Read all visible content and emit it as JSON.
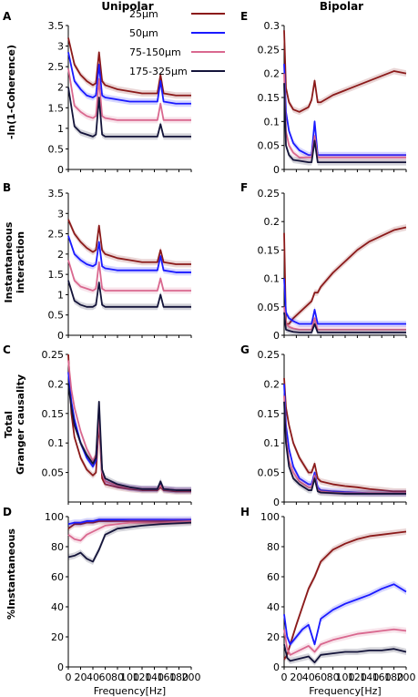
{
  "colors": {
    "s25": "#8b1a1a",
    "s50": "#1a1aff",
    "s75": "#d9688f",
    "s175": "#14143a",
    "band": "#c9c6dc"
  },
  "headers": {
    "left": "Unipolar",
    "right": "Bipolar"
  },
  "row_labels": {
    "a": [
      "-ln(1-Coherence)"
    ],
    "b": [
      "Instantaneous",
      "interaction"
    ],
    "c": [
      "Total",
      "Granger causality"
    ],
    "d": [
      "%Instantaneous"
    ]
  },
  "legend": {
    "placement": "top-right of panel A",
    "entries": [
      "25μm",
      "50μm",
      "75-150μm",
      "175-325μm"
    ]
  },
  "chart_data": [
    {
      "panel": "A",
      "type": "line",
      "ylim": [
        0,
        3.5
      ],
      "yticks": [
        "0",
        "0.5",
        "1",
        "1.5",
        "2",
        "2.5",
        "3",
        "3.5"
      ],
      "xticks": [],
      "x": [
        0,
        10,
        20,
        30,
        40,
        45,
        50,
        55,
        60,
        80,
        100,
        120,
        145,
        150,
        155,
        175,
        200
      ],
      "series": [
        {
          "name": "25μm",
          "values": [
            3.2,
            2.55,
            2.3,
            2.15,
            2.05,
            2.1,
            2.85,
            2.15,
            2.05,
            1.95,
            1.9,
            1.85,
            1.85,
            2.3,
            1.85,
            1.8,
            1.8
          ]
        },
        {
          "name": "50μm",
          "values": [
            2.85,
            2.15,
            1.95,
            1.8,
            1.75,
            1.8,
            2.55,
            1.8,
            1.75,
            1.7,
            1.65,
            1.65,
            1.65,
            2.15,
            1.65,
            1.6,
            1.6
          ]
        },
        {
          "name": "75-150μm",
          "values": [
            2.45,
            1.55,
            1.4,
            1.3,
            1.25,
            1.3,
            2.2,
            1.3,
            1.25,
            1.2,
            1.2,
            1.2,
            1.2,
            1.6,
            1.2,
            1.2,
            1.2
          ]
        },
        {
          "name": "175-325μm",
          "values": [
            2.0,
            1.05,
            0.9,
            0.85,
            0.8,
            0.85,
            1.75,
            0.85,
            0.8,
            0.8,
            0.8,
            0.8,
            0.8,
            1.1,
            0.8,
            0.8,
            0.8
          ]
        }
      ]
    },
    {
      "panel": "B",
      "type": "line",
      "ylim": [
        0,
        3.5
      ],
      "yticks": [
        "0",
        "0.5",
        "1",
        "1.5",
        "2",
        "2.5",
        "3",
        "3.5"
      ],
      "xticks": [],
      "x": [
        0,
        10,
        20,
        30,
        40,
        45,
        50,
        55,
        60,
        80,
        100,
        120,
        145,
        150,
        155,
        175,
        200
      ],
      "series": [
        {
          "name": "25μm",
          "values": [
            2.85,
            2.5,
            2.3,
            2.15,
            2.05,
            2.1,
            2.7,
            2.1,
            2.0,
            1.9,
            1.85,
            1.8,
            1.8,
            2.1,
            1.8,
            1.75,
            1.75
          ]
        },
        {
          "name": "50μm",
          "values": [
            2.45,
            2.0,
            1.85,
            1.75,
            1.7,
            1.75,
            2.3,
            1.7,
            1.65,
            1.6,
            1.6,
            1.6,
            1.6,
            1.95,
            1.6,
            1.55,
            1.55
          ]
        },
        {
          "name": "75-150μm",
          "values": [
            1.85,
            1.35,
            1.2,
            1.15,
            1.1,
            1.15,
            1.8,
            1.15,
            1.1,
            1.1,
            1.1,
            1.1,
            1.1,
            1.4,
            1.1,
            1.1,
            1.1
          ]
        },
        {
          "name": "175-325μm",
          "values": [
            1.35,
            0.85,
            0.75,
            0.7,
            0.7,
            0.75,
            1.3,
            0.75,
            0.7,
            0.7,
            0.7,
            0.7,
            0.7,
            1.0,
            0.7,
            0.7,
            0.7
          ]
        }
      ]
    },
    {
      "panel": "C",
      "type": "line",
      "ylim": [
        0,
        0.25
      ],
      "yticks": [
        "0.05",
        "0.1",
        "0.15",
        "0.2",
        "0.25"
      ],
      "xticks": [],
      "x": [
        0,
        5,
        10,
        20,
        30,
        40,
        45,
        50,
        55,
        60,
        80,
        100,
        120,
        145,
        150,
        155,
        175,
        200
      ],
      "series": [
        {
          "name": "25μm",
          "values": [
            0.25,
            0.15,
            0.11,
            0.075,
            0.055,
            0.045,
            0.05,
            0.135,
            0.04,
            0.03,
            0.025,
            0.022,
            0.02,
            0.02,
            0.025,
            0.02,
            0.018,
            0.018
          ]
        },
        {
          "name": "50μm",
          "values": [
            0.22,
            0.17,
            0.14,
            0.1,
            0.075,
            0.06,
            0.07,
            0.15,
            0.05,
            0.035,
            0.028,
            0.024,
            0.022,
            0.022,
            0.03,
            0.022,
            0.02,
            0.02
          ]
        },
        {
          "name": "75-150μm",
          "values": [
            0.24,
            0.19,
            0.16,
            0.12,
            0.09,
            0.07,
            0.08,
            0.14,
            0.05,
            0.035,
            0.028,
            0.024,
            0.022,
            0.022,
            0.028,
            0.022,
            0.02,
            0.02
          ]
        },
        {
          "name": "175-325μm",
          "values": [
            0.2,
            0.16,
            0.13,
            0.1,
            0.08,
            0.065,
            0.075,
            0.17,
            0.055,
            0.04,
            0.03,
            0.025,
            0.022,
            0.022,
            0.035,
            0.022,
            0.02,
            0.02
          ]
        }
      ]
    },
    {
      "panel": "D",
      "type": "line",
      "ylim": [
        0,
        100
      ],
      "yticks": [
        "0",
        "20",
        "40",
        "60",
        "80",
        "100"
      ],
      "xticks": [
        "0",
        "20",
        "40",
        "60",
        "80",
        "100",
        "120",
        "140",
        "160",
        "180",
        "200"
      ],
      "xlabel": "Frequency[Hz]",
      "x": [
        0,
        10,
        20,
        30,
        40,
        50,
        60,
        80,
        100,
        120,
        150,
        200
      ],
      "series": [
        {
          "name": "25μm",
          "values": [
            92,
            95,
            95,
            96,
            96,
            97,
            97,
            97,
            97,
            97,
            97,
            97
          ]
        },
        {
          "name": "50μm",
          "values": [
            95,
            96,
            96,
            97,
            97,
            98,
            98,
            98,
            98,
            98,
            98,
            98
          ]
        },
        {
          "name": "75-150μm",
          "values": [
            88,
            85,
            84,
            88,
            90,
            92,
            94,
            95,
            96,
            96,
            96,
            97
          ]
        },
        {
          "name": "175-325μm",
          "values": [
            73,
            74,
            76,
            72,
            70,
            78,
            88,
            92,
            93,
            94,
            95,
            96
          ]
        }
      ]
    },
    {
      "panel": "E",
      "type": "line",
      "ylim": [
        0,
        0.3
      ],
      "yticks": [
        "0",
        "0.05",
        "0.1",
        "0.15",
        "0.2",
        "0.25",
        "0.3"
      ],
      "xticks": [],
      "x": [
        0,
        3,
        8,
        15,
        25,
        40,
        45,
        50,
        55,
        60,
        80,
        100,
        120,
        140,
        160,
        180,
        200
      ],
      "series": [
        {
          "name": "25μm",
          "values": [
            0.29,
            0.17,
            0.14,
            0.125,
            0.12,
            0.13,
            0.145,
            0.185,
            0.14,
            0.14,
            0.155,
            0.165,
            0.175,
            0.185,
            0.195,
            0.205,
            0.2
          ]
        },
        {
          "name": "50μm",
          "values": [
            0.22,
            0.12,
            0.08,
            0.055,
            0.04,
            0.03,
            0.03,
            0.1,
            0.03,
            0.03,
            0.03,
            0.03,
            0.03,
            0.03,
            0.03,
            0.03,
            0.03
          ]
        },
        {
          "name": "75-150μm",
          "values": [
            0.2,
            0.08,
            0.05,
            0.035,
            0.025,
            0.025,
            0.025,
            0.07,
            0.025,
            0.025,
            0.025,
            0.025,
            0.025,
            0.025,
            0.025,
            0.025,
            0.025
          ]
        },
        {
          "name": "175-325μm",
          "values": [
            0.18,
            0.05,
            0.03,
            0.02,
            0.018,
            0.015,
            0.015,
            0.06,
            0.015,
            0.015,
            0.015,
            0.015,
            0.015,
            0.015,
            0.015,
            0.015,
            0.015
          ]
        }
      ]
    },
    {
      "panel": "F",
      "type": "line",
      "ylim": [
        0,
        0.25
      ],
      "yticks": [
        "0",
        "0.05",
        "0.1",
        "0.15",
        "0.2",
        "0.25"
      ],
      "xticks": [],
      "x": [
        0,
        3,
        8,
        15,
        25,
        40,
        45,
        50,
        55,
        60,
        80,
        100,
        120,
        140,
        160,
        180,
        200
      ],
      "series": [
        {
          "name": "25μm",
          "values": [
            0.18,
            0.02,
            0.02,
            0.03,
            0.04,
            0.055,
            0.06,
            0.075,
            0.075,
            0.085,
            0.11,
            0.13,
            0.15,
            0.165,
            0.175,
            0.185,
            0.19
          ]
        },
        {
          "name": "50μm",
          "values": [
            0.1,
            0.04,
            0.03,
            0.025,
            0.02,
            0.02,
            0.02,
            0.045,
            0.02,
            0.02,
            0.02,
            0.02,
            0.02,
            0.02,
            0.02,
            0.02,
            0.02
          ]
        },
        {
          "name": "75-150μm",
          "values": [
            0.05,
            0.02,
            0.015,
            0.012,
            0.01,
            0.01,
            0.01,
            0.03,
            0.01,
            0.01,
            0.01,
            0.01,
            0.01,
            0.01,
            0.01,
            0.01,
            0.01
          ]
        },
        {
          "name": "175-325μm",
          "values": [
            0.04,
            0.01,
            0.008,
            0.006,
            0.005,
            0.005,
            0.005,
            0.02,
            0.005,
            0.005,
            0.005,
            0.005,
            0.005,
            0.005,
            0.005,
            0.005,
            0.005
          ]
        }
      ]
    },
    {
      "panel": "G",
      "type": "line",
      "ylim": [
        0,
        0.25
      ],
      "yticks": [
        "0",
        "0.05",
        "0.1",
        "0.15",
        "0.2",
        "0.25"
      ],
      "xticks": [],
      "x": [
        0,
        3,
        8,
        15,
        25,
        40,
        45,
        50,
        55,
        60,
        80,
        100,
        120,
        140,
        160,
        180,
        200
      ],
      "series": [
        {
          "name": "25μm",
          "values": [
            0.21,
            0.16,
            0.13,
            0.1,
            0.075,
            0.05,
            0.05,
            0.065,
            0.04,
            0.035,
            0.03,
            0.027,
            0.025,
            0.022,
            0.02,
            0.018,
            0.018
          ]
        },
        {
          "name": "50μm",
          "values": [
            0.2,
            0.13,
            0.09,
            0.06,
            0.04,
            0.03,
            0.03,
            0.05,
            0.025,
            0.02,
            0.018,
            0.017,
            0.016,
            0.015,
            0.015,
            0.015,
            0.015
          ]
        },
        {
          "name": "75-150μm",
          "values": [
            0.18,
            0.11,
            0.07,
            0.05,
            0.035,
            0.025,
            0.025,
            0.045,
            0.02,
            0.018,
            0.016,
            0.015,
            0.015,
            0.015,
            0.015,
            0.015,
            0.015
          ]
        },
        {
          "name": "175-325μm",
          "values": [
            0.17,
            0.1,
            0.06,
            0.04,
            0.03,
            0.02,
            0.02,
            0.04,
            0.018,
            0.016,
            0.015,
            0.014,
            0.014,
            0.014,
            0.014,
            0.014,
            0.014
          ]
        }
      ]
    },
    {
      "panel": "H",
      "type": "line",
      "ylim": [
        0,
        100
      ],
      "yticks": [
        "0",
        "20",
        "40",
        "60",
        "80",
        "100"
      ],
      "xticks": [
        "0",
        "20",
        "40",
        "60",
        "80",
        "100",
        "120",
        "140",
        "160",
        "180",
        "200"
      ],
      "xlabel": "Frequency[Hz]",
      "x": [
        0,
        5,
        10,
        20,
        30,
        40,
        50,
        60,
        80,
        100,
        120,
        140,
        160,
        180,
        200
      ],
      "series": [
        {
          "name": "25μm",
          "values": [
            5,
            8,
            15,
            28,
            40,
            52,
            60,
            70,
            78,
            82,
            85,
            87,
            88,
            89,
            90
          ]
        },
        {
          "name": "50μm",
          "values": [
            35,
            20,
            15,
            20,
            25,
            28,
            15,
            32,
            38,
            42,
            45,
            48,
            52,
            55,
            50
          ]
        },
        {
          "name": "75-150μm",
          "values": [
            25,
            12,
            8,
            10,
            12,
            14,
            10,
            15,
            18,
            20,
            22,
            23,
            24,
            25,
            24
          ]
        },
        {
          "name": "175-325μm",
          "values": [
            15,
            6,
            4,
            5,
            6,
            7,
            3,
            8,
            9,
            10,
            10,
            11,
            11,
            12,
            10
          ]
        }
      ]
    }
  ]
}
